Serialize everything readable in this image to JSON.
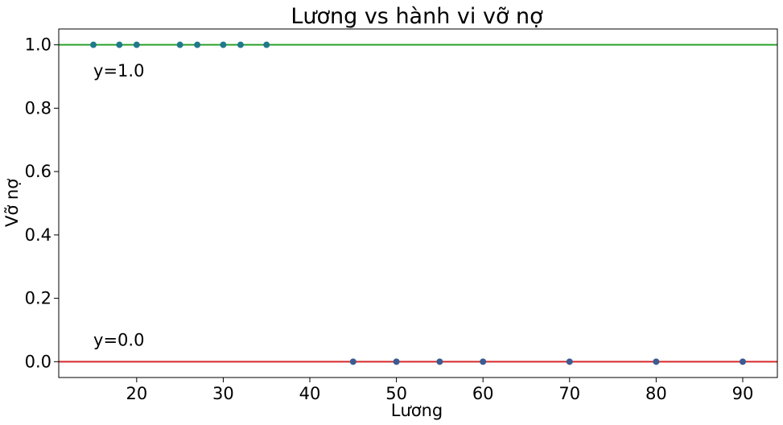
{
  "chart_data": {
    "type": "scatter",
    "title": "Lương vs hành vi vỡ nợ",
    "xlabel": "Lương",
    "ylabel": "Vỡ nợ",
    "xlim": [
      11,
      94
    ],
    "ylim": [
      -0.05,
      1.05
    ],
    "xticks": [
      20,
      30,
      40,
      50,
      60,
      70,
      80,
      90
    ],
    "yticks": [
      0.0,
      0.2,
      0.4,
      0.6,
      0.8,
      1.0
    ],
    "xtick_labels": [
      "20",
      "30",
      "40",
      "50",
      "60",
      "70",
      "80",
      "90"
    ],
    "ytick_labels": [
      "0.0",
      "0.2",
      "0.4",
      "0.6",
      "0.8",
      "1.0"
    ],
    "grid": false,
    "points": [
      {
        "x": 15,
        "y": 1
      },
      {
        "x": 18,
        "y": 1
      },
      {
        "x": 20,
        "y": 1
      },
      {
        "x": 25,
        "y": 1
      },
      {
        "x": 27,
        "y": 1
      },
      {
        "x": 30,
        "y": 1
      },
      {
        "x": 32,
        "y": 1
      },
      {
        "x": 35,
        "y": 1
      },
      {
        "x": 45,
        "y": 0
      },
      {
        "x": 50,
        "y": 0
      },
      {
        "x": 55,
        "y": 0
      },
      {
        "x": 60,
        "y": 0
      },
      {
        "x": 70,
        "y": 0
      },
      {
        "x": 80,
        "y": 0
      },
      {
        "x": 90,
        "y": 0
      }
    ],
    "hlines": [
      {
        "y": 1.0,
        "color": "#2ca02c"
      },
      {
        "y": 0.0,
        "color": "#d62728"
      }
    ],
    "annotations": [
      {
        "text": "y=1.0",
        "x": 15,
        "y": 0.9
      },
      {
        "text": "y=0.0",
        "x": 15,
        "y": 0.05
      }
    ],
    "colors": {
      "point_upper": "#1f7a8c",
      "point_lower": "#3b5b92"
    }
  }
}
